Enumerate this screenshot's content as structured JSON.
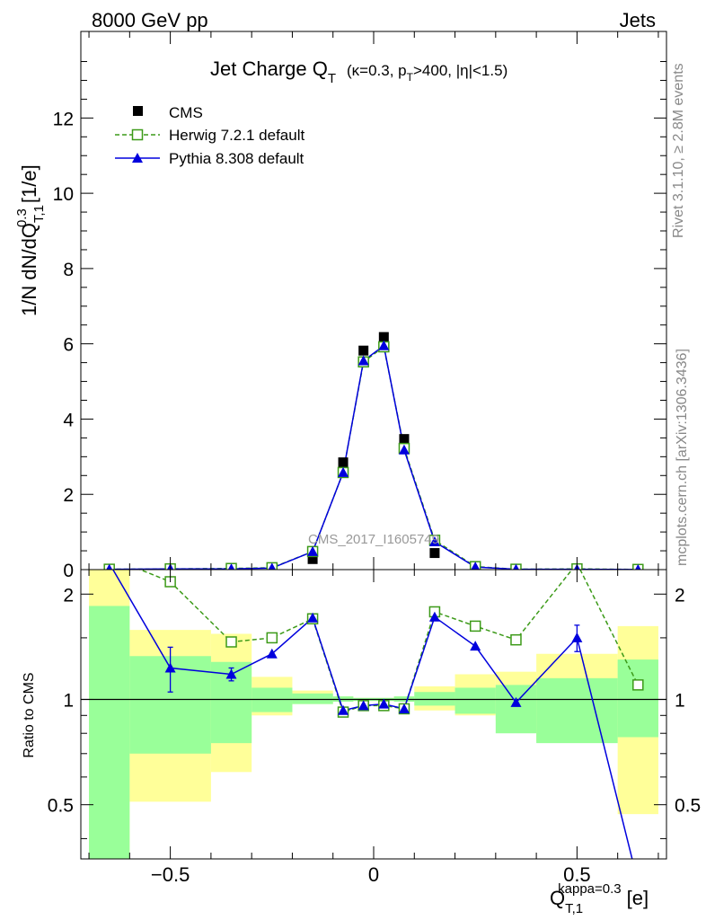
{
  "header": {
    "left": "8000 GeV pp",
    "right": "Jets"
  },
  "side_text": {
    "rivet": "Rivet 3.1.10, ≥ 2.8M events",
    "mcplots": "mcplots.cern.ch [arXiv:1306.3436]"
  },
  "watermark": "CMS_2017_I1605749",
  "colors": {
    "cms": "#000000",
    "herwig": "#3c9a18",
    "pythia": "#0000dd",
    "band_inner": "#99ff99",
    "band_outer": "#ffff99"
  },
  "chart_data": [
    {
      "type": "scatter",
      "title": "Jet Charge Q_T (κ=0.3, p_T>400, |η|<1.5)",
      "title_main": "Jet Charge Q",
      "title_main_sub": "T",
      "title_sel": "(κ=0.3, p",
      "title_sel_sub": "T",
      "title_sel_end": ">400, |η|<1.5)",
      "ylabel": "1/N dN/dQ_{T,1}^{0.3} [1/e]",
      "ylabel_main": "1/N dN/dQ",
      "ylabel_sup": "0.3",
      "ylabel_sub": "T,1",
      "ylabel_unit": " [1/e]",
      "xlim": [
        -0.72,
        0.72
      ],
      "ylim": [
        0,
        14.3
      ],
      "yticks": [
        0,
        2,
        4,
        6,
        8,
        10,
        12
      ],
      "yticklabels": [
        "0",
        "2",
        "4",
        "6",
        "8",
        "10",
        "12"
      ],
      "legend_position": "top-left",
      "x": [
        -0.65,
        -0.5,
        -0.35,
        -0.25,
        -0.15,
        -0.075,
        -0.025,
        0.025,
        0.075,
        0.15,
        0.25,
        0.35,
        0.5,
        0.65
      ],
      "series": [
        {
          "name": "CMS",
          "style": "markers",
          "marker": "square",
          "values": [
            0.02,
            0.02,
            0.02,
            0.03,
            0.28,
            2.85,
            5.82,
            6.18,
            3.47,
            0.44,
            0.05,
            0.01,
            0.01,
            0.005
          ]
        },
        {
          "name": "Herwig 7.2.1 default",
          "style": "dashed",
          "marker": "open-square",
          "values": [
            0.01,
            0.02,
            0.03,
            0.05,
            0.48,
            2.58,
            5.52,
            5.92,
            3.22,
            0.78,
            0.08,
            0.01,
            0.02,
            0.005
          ]
        },
        {
          "name": "Pythia 8.308 default",
          "style": "solid",
          "marker": "triangle",
          "values": [
            0.01,
            0.02,
            0.02,
            0.04,
            0.48,
            2.58,
            5.55,
            5.95,
            3.18,
            0.74,
            0.07,
            0.01,
            0.01,
            0.002
          ]
        }
      ]
    },
    {
      "type": "line",
      "ylabel": "Ratio to CMS",
      "xlabel": "Q_{T,1}^{kappa=0.3} [e]",
      "xlabel_main": "Q",
      "xlabel_sup": "kappa=0.3",
      "xlabel_sub": "T,1",
      "xlabel_unit": "[e]",
      "xlim": [
        -0.72,
        0.72
      ],
      "ylim": [
        0.35,
        2.35
      ],
      "xticks": [
        -0.5,
        0,
        0.5
      ],
      "xticklabels": [
        "−0.5",
        "0",
        "0.5"
      ],
      "yticks": [
        0.5,
        1,
        2
      ],
      "yticklabels": [
        "0.5",
        "1",
        "2"
      ],
      "reference_line": 1,
      "bin_edges": [
        -0.7,
        -0.6,
        -0.4,
        -0.3,
        -0.2,
        -0.1,
        -0.05,
        0,
        0.05,
        0.1,
        0.2,
        0.3,
        0.4,
        0.6,
        0.7
      ],
      "band_inner": [
        [
          0.35,
          1.85
        ],
        [
          0.7,
          1.33
        ],
        [
          0.75,
          1.28
        ],
        [
          0.92,
          1.08
        ],
        [
          0.97,
          1.04
        ],
        [
          0.985,
          1.02
        ],
        [
          0.99,
          1.01
        ],
        [
          0.99,
          1.01
        ],
        [
          0.985,
          1.02
        ],
        [
          0.96,
          1.05
        ],
        [
          0.91,
          1.08
        ],
        [
          0.8,
          1.1
        ],
        [
          0.75,
          1.15
        ],
        [
          0.78,
          1.3
        ]
      ],
      "band_outer": [
        [
          0.35,
          2.35
        ],
        [
          0.51,
          1.58
        ],
        [
          0.62,
          1.54
        ],
        [
          0.9,
          1.16
        ],
        [
          0.97,
          1.06
        ],
        [
          0.985,
          1.02
        ],
        [
          0.99,
          1.01
        ],
        [
          0.99,
          1.01
        ],
        [
          0.985,
          1.02
        ],
        [
          0.93,
          1.09
        ],
        [
          0.9,
          1.18
        ],
        [
          0.87,
          1.2
        ],
        [
          0.76,
          1.35
        ],
        [
          0.47,
          1.62
        ]
      ],
      "x": [
        -0.65,
        -0.5,
        -0.35,
        -0.25,
        -0.15,
        -0.075,
        -0.025,
        0.025,
        0.075,
        0.15,
        0.25,
        0.35,
        0.5,
        0.65
      ],
      "series": [
        {
          "name": "Herwig 7.2.1 default",
          "style": "dashed",
          "marker": "open-square",
          "values": [
            2.55,
            2.17,
            1.46,
            1.5,
            1.7,
            0.92,
            0.96,
            0.96,
            0.94,
            1.78,
            1.62,
            1.48,
            2.45,
            1.1
          ],
          "errors": [
            [
              2.06,
              0.1
            ],
            [
              1.05,
              0.06
            ],
            [
              0.76,
              1.5
            ]
          ]
        },
        {
          "name": "Pythia 8.308 default",
          "style": "solid",
          "marker": "triangle",
          "values": [
            2.45,
            1.23,
            1.18,
            1.35,
            1.71,
            0.93,
            0.96,
            0.97,
            0.94,
            1.72,
            1.42,
            0.98,
            1.5,
            0.3
          ],
          "errors": [
            [
              -0.5,
              0.18
            ],
            [
              -0.35,
              0.05
            ],
            [
              0.5,
              0.13
            ]
          ]
        }
      ]
    }
  ]
}
